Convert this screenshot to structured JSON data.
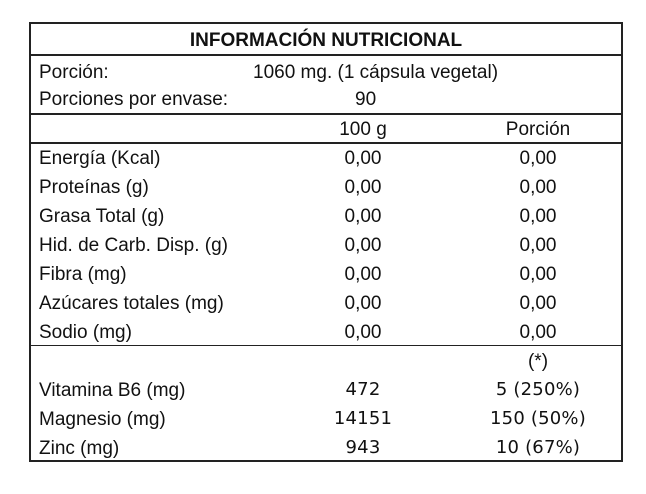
{
  "title": "INFORMACIÓN NUTRICIONAL",
  "porcion": {
    "label": "Porción:",
    "value": "1060  mg. (1 cápsula vegetal)"
  },
  "porciones_envase": {
    "label": "Porciones por envase:",
    "value": "90"
  },
  "columns": {
    "per100": "100  g",
    "porcion": "Porción"
  },
  "nutrients": [
    {
      "name": "Energía (Kcal)",
      "per100": "0,00",
      "porcion": "0,00"
    },
    {
      "name": "Proteínas (g)",
      "per100": "0,00",
      "porcion": "0,00"
    },
    {
      "name": "Grasa Total (g)",
      "per100": "0,00",
      "porcion": "0,00"
    },
    {
      "name": "Hid. de Carb. Disp. (g)",
      "per100": "0,00",
      "porcion": "0,00"
    },
    {
      "name": "Fibra (mg)",
      "per100": "0,00",
      "porcion": "0,00"
    },
    {
      "name": "Azúcares totales (mg)",
      "per100": "0,00",
      "porcion": "0,00"
    },
    {
      "name": "Sodio (mg)",
      "per100": "0,00",
      "porcion": "0,00"
    }
  ],
  "footnote_mark": "(*)",
  "minerals": [
    {
      "name": "Vitamina B6 (mg)",
      "per100": "472",
      "porcion": "5 (250%)"
    },
    {
      "name": "Magnesio (mg)",
      "per100": "14151",
      "porcion": "150 (50%)"
    },
    {
      "name": "Zinc (mg)",
      "per100": "943",
      "porcion": "10 (67%)"
    }
  ]
}
